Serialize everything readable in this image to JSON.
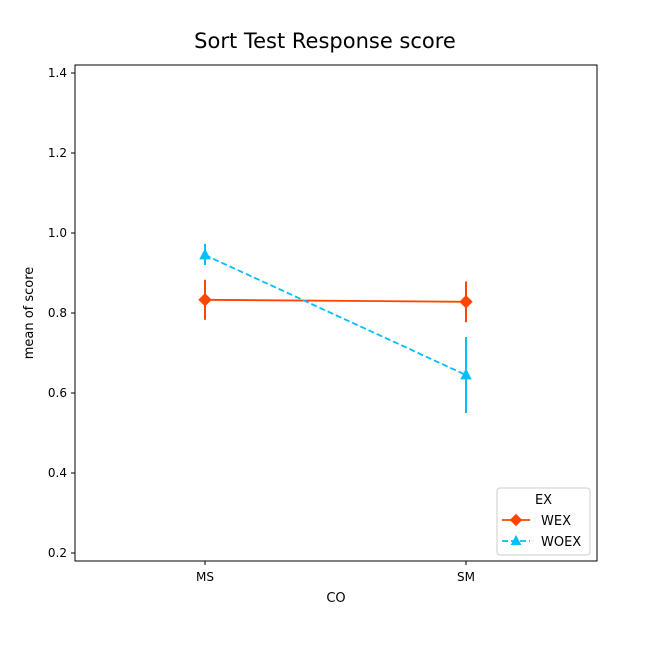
{
  "chart_data": {
    "type": "line",
    "title": "Sort Test Response score",
    "xlabel": "CO",
    "ylabel": "mean of score",
    "categories": [
      "MS",
      "SM"
    ],
    "ylim": [
      0.18,
      1.42
    ],
    "yticks": [
      "0.2",
      "0.4",
      "0.6",
      "0.8",
      "1.0",
      "1.2",
      "1.4"
    ],
    "grid": false,
    "legend": {
      "title": "EX",
      "placement": "bottom-right"
    },
    "series": [
      {
        "name": "WEX",
        "color": "#ff4500",
        "marker": "diamond",
        "linestyle": "solid",
        "values": [
          0.833,
          0.828
        ],
        "error_low": [
          0.783,
          0.777
        ],
        "error_high": [
          0.883,
          0.879
        ]
      },
      {
        "name": "WOEX",
        "color": "#00bfff",
        "marker": "triangle-up",
        "linestyle": "dashed",
        "values": [
          0.945,
          0.645
        ],
        "error_low": [
          0.92,
          0.55
        ],
        "error_high": [
          0.973,
          0.74
        ]
      }
    ]
  }
}
